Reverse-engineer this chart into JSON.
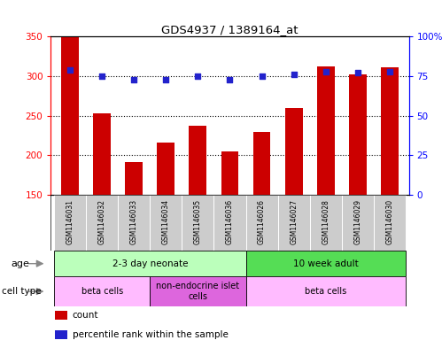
{
  "title": "GDS4937 / 1389164_at",
  "samples": [
    "GSM1146031",
    "GSM1146032",
    "GSM1146033",
    "GSM1146034",
    "GSM1146035",
    "GSM1146036",
    "GSM1146026",
    "GSM1146027",
    "GSM1146028",
    "GSM1146029",
    "GSM1146030"
  ],
  "counts": [
    350,
    253,
    191,
    216,
    237,
    205,
    230,
    260,
    312,
    302,
    311
  ],
  "percentile": [
    79,
    75,
    73,
    73,
    75,
    73,
    75,
    76,
    78,
    77,
    78
  ],
  "ylim_left": [
    150,
    350
  ],
  "ylim_right": [
    0,
    100
  ],
  "yticks_left": [
    150,
    200,
    250,
    300,
    350
  ],
  "yticks_right": [
    0,
    25,
    50,
    75,
    100
  ],
  "ytick_labels_left": [
    "150",
    "200",
    "250",
    "300",
    "350"
  ],
  "ytick_labels_right": [
    "0",
    "25",
    "50",
    "75",
    "100%"
  ],
  "bar_color": "#cc0000",
  "dot_color": "#2222cc",
  "age_groups": [
    {
      "label": "2-3 day neonate",
      "start": 0,
      "end": 6,
      "color": "#bbffbb"
    },
    {
      "label": "10 week adult",
      "start": 6,
      "end": 11,
      "color": "#55dd55"
    }
  ],
  "cell_type_groups": [
    {
      "label": "beta cells",
      "start": 0,
      "end": 3,
      "color": "#ffbbff"
    },
    {
      "label": "non-endocrine islet\ncells",
      "start": 3,
      "end": 6,
      "color": "#dd66dd"
    },
    {
      "label": "beta cells",
      "start": 6,
      "end": 11,
      "color": "#ffbbff"
    }
  ],
  "legend_items": [
    {
      "color": "#cc0000",
      "label": "count"
    },
    {
      "color": "#2222cc",
      "label": "percentile rank within the sample"
    }
  ],
  "bg_color": "#ffffff"
}
